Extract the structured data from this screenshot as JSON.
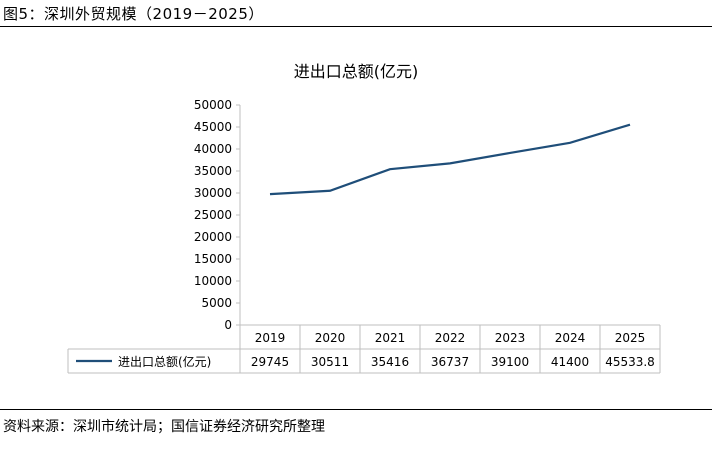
{
  "figure": {
    "caption": "图5：深圳外贸规模（2019－2025）",
    "source": "资料来源：深圳市统计局；国信证券经济研究所整理"
  },
  "colors": {
    "line": "#1f4e79",
    "grid": "#bfbfbf",
    "text": "#000000"
  },
  "chart_data": {
    "type": "line",
    "title": "进出口总额(亿元)",
    "categories": [
      "2019",
      "2020",
      "2021",
      "2022",
      "2023",
      "2024",
      "2025"
    ],
    "series": [
      {
        "name": "进出口总额(亿元)",
        "values": [
          29745,
          30511,
          35416,
          36737,
          39100,
          41400,
          45533.8
        ],
        "labels": [
          "29745",
          "30511",
          "35416",
          "36737",
          "39100",
          "41400",
          "45533.8"
        ]
      }
    ],
    "ylim": [
      0,
      50000
    ],
    "yticks": [
      0,
      5000,
      10000,
      15000,
      20000,
      25000,
      30000,
      35000,
      40000,
      45000,
      50000
    ],
    "xlabel": "",
    "ylabel": "",
    "data_table": true,
    "grid": false
  }
}
